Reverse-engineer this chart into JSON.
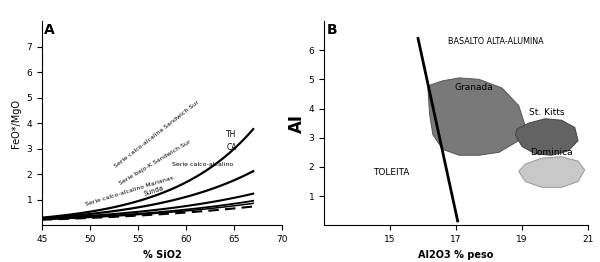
{
  "panel_A": {
    "xlabel": "% SiO2",
    "ylabel": "FeO*/MgO",
    "xlim": [
      45,
      70
    ],
    "ylim": [
      0,
      8
    ],
    "yticks": [
      1,
      2,
      3,
      4,
      5,
      6,
      7
    ],
    "xticks": [
      45,
      50,
      55,
      60,
      65,
      70
    ],
    "label_A": "A"
  },
  "panel_B": {
    "xlabel": "Al2O3 % peso",
    "ylabel": "AI",
    "xlim": [
      13,
      21
    ],
    "ylim": [
      0,
      7
    ],
    "yticks": [
      1,
      2,
      3,
      4,
      5,
      6
    ],
    "xticks": [
      15,
      17,
      19,
      21
    ],
    "label_B": "B",
    "divider_line_x": [
      15.85,
      17.05
    ],
    "divider_line_y": [
      6.4,
      0.15
    ],
    "label_basalto": "BASALTO ALTA-ALUMINA",
    "label_toleita": "TOLEITA",
    "granada_poly": [
      [
        16.15,
        4.7
      ],
      [
        16.2,
        3.8
      ],
      [
        16.3,
        3.1
      ],
      [
        16.6,
        2.6
      ],
      [
        17.1,
        2.4
      ],
      [
        17.7,
        2.4
      ],
      [
        18.3,
        2.5
      ],
      [
        18.9,
        2.9
      ],
      [
        19.1,
        3.4
      ],
      [
        18.9,
        4.1
      ],
      [
        18.4,
        4.7
      ],
      [
        17.7,
        5.0
      ],
      [
        17.1,
        5.05
      ],
      [
        16.6,
        4.95
      ],
      [
        16.2,
        4.8
      ]
    ],
    "granada_color": "#797979",
    "stkitts_poly": [
      [
        18.8,
        3.1
      ],
      [
        19.0,
        2.7
      ],
      [
        19.4,
        2.45
      ],
      [
        19.9,
        2.4
      ],
      [
        20.4,
        2.55
      ],
      [
        20.7,
        2.9
      ],
      [
        20.6,
        3.35
      ],
      [
        20.2,
        3.6
      ],
      [
        19.7,
        3.65
      ],
      [
        19.2,
        3.5
      ],
      [
        18.85,
        3.3
      ]
    ],
    "stkitts_color": "#636363",
    "dominica_poly": [
      [
        18.9,
        1.85
      ],
      [
        19.1,
        1.5
      ],
      [
        19.6,
        1.3
      ],
      [
        20.2,
        1.3
      ],
      [
        20.7,
        1.5
      ],
      [
        20.9,
        1.9
      ],
      [
        20.7,
        2.2
      ],
      [
        20.2,
        2.35
      ],
      [
        19.6,
        2.3
      ],
      [
        19.1,
        2.1
      ]
    ],
    "dominica_color": "#c8c8c8"
  }
}
